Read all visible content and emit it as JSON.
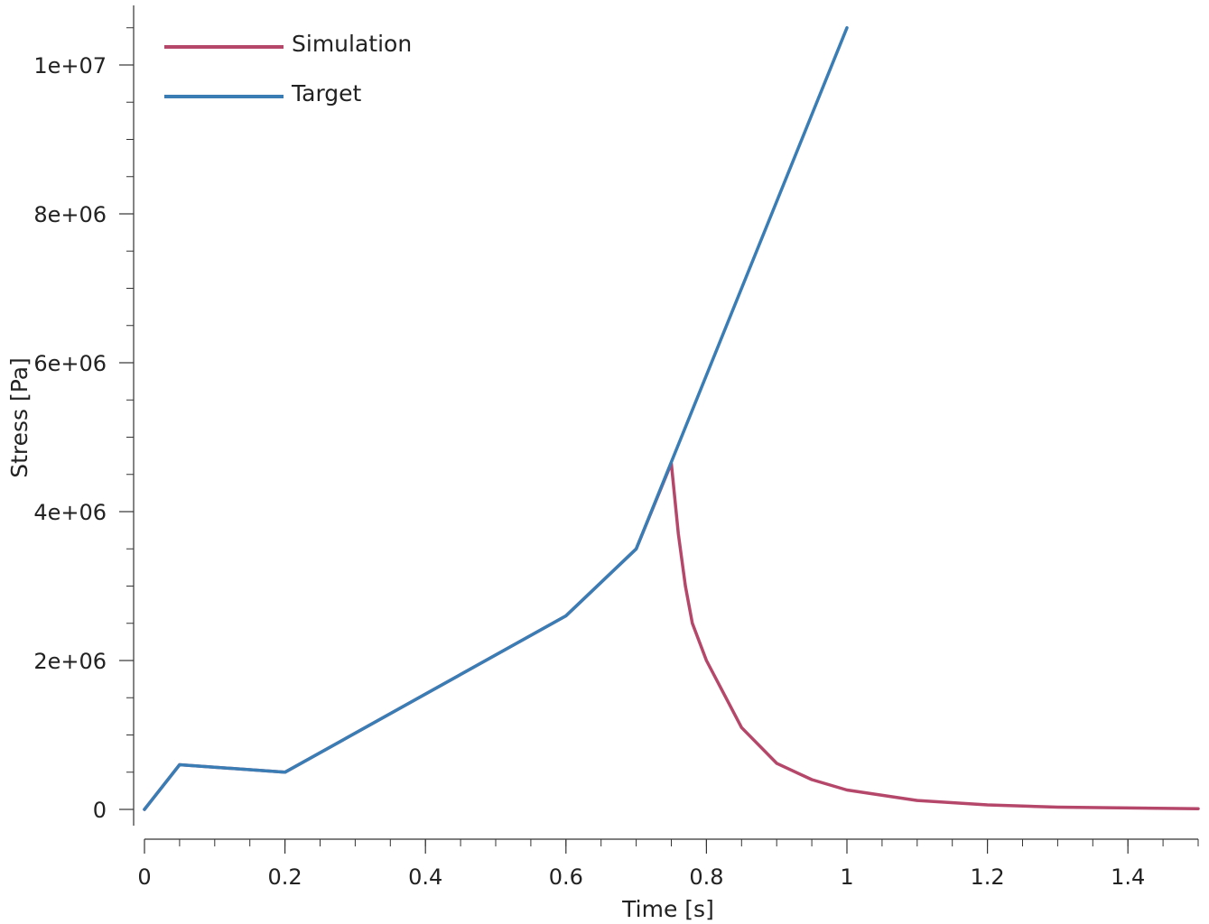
{
  "chart_data": {
    "type": "line",
    "xlabel": "Time [s]",
    "ylabel": "Stress [Pa]",
    "xlim": [
      0,
      1.5
    ],
    "ylim": [
      -400000,
      10800000
    ],
    "x_ticks": [
      0,
      0.2,
      0.4,
      0.6,
      0.8,
      1,
      1.2,
      1.4
    ],
    "x_tick_labels": [
      "0",
      "0.2",
      "0.4",
      "0.6",
      "0.8",
      "1",
      "1.2",
      "1.4"
    ],
    "x_minor_step": 0.05,
    "y_ticks": [
      0,
      2000000,
      4000000,
      6000000,
      8000000,
      10000000
    ],
    "y_tick_labels": [
      "0",
      "2e+06",
      "4e+06",
      "6e+06",
      "8e+06",
      "1e+07"
    ],
    "y_minor_step": 500000,
    "grid": false,
    "legend_position": "top-left",
    "series": [
      {
        "name": "Simulation",
        "color": "#b5476b",
        "x": [
          0,
          0.05,
          0.2,
          0.6,
          0.7,
          0.75,
          0.76,
          0.77,
          0.78,
          0.8,
          0.85,
          0.9,
          0.95,
          1.0,
          1.1,
          1.2,
          1.3,
          1.4,
          1.5
        ],
        "y": [
          0,
          600000,
          500000,
          2600000,
          3500000,
          4650000,
          3700000,
          3000000,
          2500000,
          2000000,
          1100000,
          620000,
          400000,
          260000,
          120000,
          60000,
          30000,
          20000,
          10000
        ]
      },
      {
        "name": "Target",
        "color": "#3a7db5",
        "x": [
          0,
          0.05,
          0.2,
          0.6,
          0.7,
          1.0
        ],
        "y": [
          0,
          600000,
          500000,
          2600000,
          3500000,
          10500000
        ]
      }
    ]
  }
}
